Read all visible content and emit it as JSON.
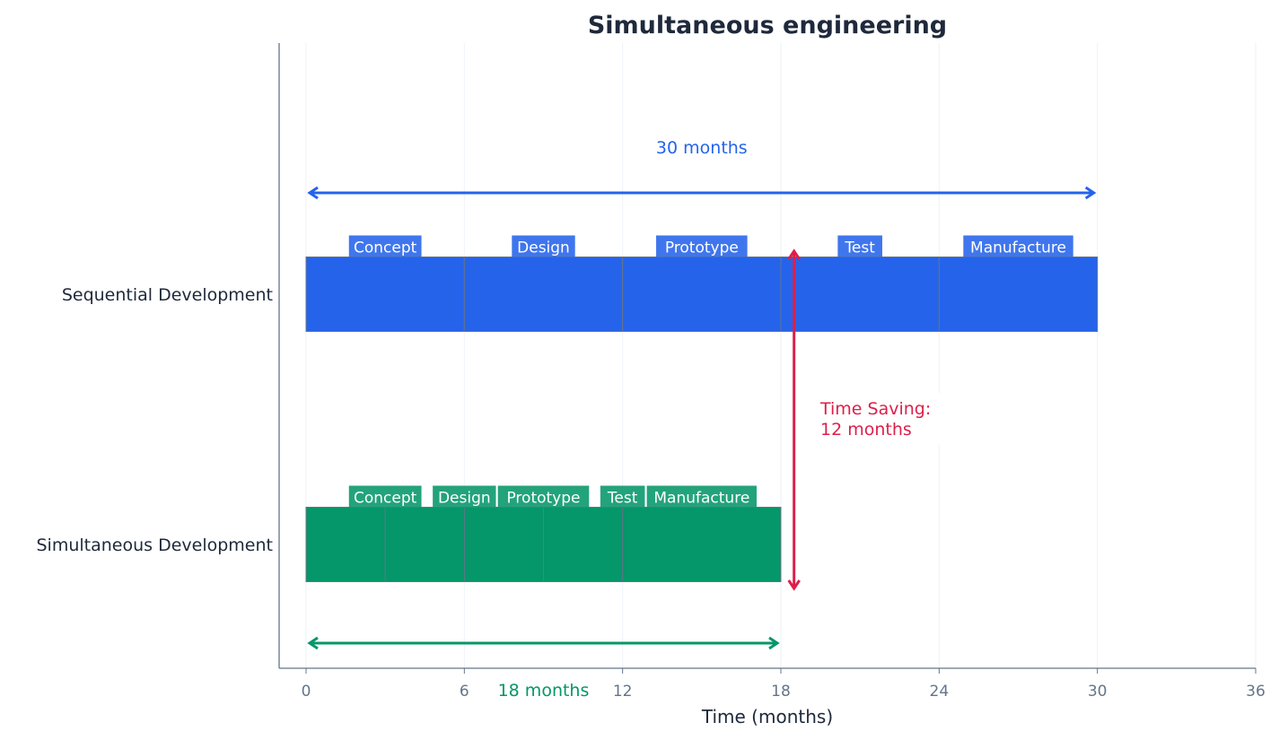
{
  "chart_data": {
    "type": "bar",
    "subtype": "gantt",
    "title": "Simultaneous engineering",
    "xlabel": "Time (months)",
    "ylabel": "",
    "xlim": [
      0,
      36
    ],
    "xticks": [
      0,
      6,
      12,
      18,
      24,
      30,
      36
    ],
    "grid": "vertical",
    "categories": [
      "Sequential Development",
      "Simultaneous Development"
    ],
    "series": [
      {
        "category": "Sequential Development",
        "color": "#2563eb",
        "tasks": [
          {
            "label": "Concept",
            "start": 0,
            "end": 6
          },
          {
            "label": "Design",
            "start": 6,
            "end": 12
          },
          {
            "label": "Prototype",
            "start": 12,
            "end": 18
          },
          {
            "label": "Test",
            "start": 18,
            "end": 24
          },
          {
            "label": "Manufacture",
            "start": 24,
            "end": 30
          }
        ]
      },
      {
        "category": "Simultaneous Development",
        "color": "#059669",
        "tasks": [
          {
            "label": "Concept",
            "start": 0,
            "end": 6
          },
          {
            "label": "Design",
            "start": 3,
            "end": 9
          },
          {
            "label": "Prototype",
            "start": 6,
            "end": 12
          },
          {
            "label": "Test",
            "start": 9,
            "end": 15
          },
          {
            "label": "Manufacture",
            "start": 12,
            "end": 18
          }
        ]
      }
    ],
    "annotations": [
      {
        "text": "30 months",
        "from": 0,
        "to": 30,
        "color": "#2563eb",
        "row": "Sequential Development"
      },
      {
        "text": "18 months",
        "from": 0,
        "to": 18,
        "color": "#059669",
        "row": "Simultaneous Development"
      },
      {
        "text": "Time Saving:\n12 months",
        "x": 18.5,
        "color": "#dc1f4b"
      }
    ]
  }
}
